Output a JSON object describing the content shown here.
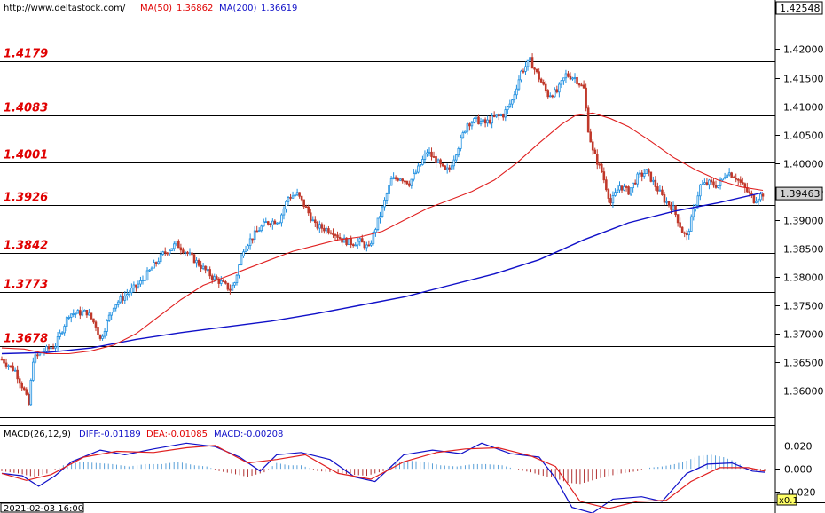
{
  "header": {
    "url": "http://www.deltastock.com/",
    "ma50_label": "MA(50)",
    "ma50_value": "1.36862",
    "ma200_label": "MA(200)",
    "ma200_value": "1.36619"
  },
  "colors": {
    "up": "#1e8fe0",
    "down": "#c0392b",
    "ma50": "#e02020",
    "ma200": "#1010c8",
    "level_text": "#e00000",
    "diff": "#1010c8",
    "dea": "#e02020",
    "hist_pos": "#5aa0d8",
    "hist_neg": "#b03030"
  },
  "macd_header": {
    "title": "MACD(26,12,9)",
    "diff": "DIFF:-0.01189",
    "dea": "DEA:-0.01085",
    "macd": "MACD:-0.00208"
  },
  "footer": {
    "date": "2021-02-03 16:00",
    "zoom": "x0.1"
  },
  "chart_data": [
    {
      "type": "candlestick",
      "title": "",
      "ylim": [
        1.3555,
        1.426
      ],
      "y_ticks": [
        "1.42000",
        "1.41500",
        "1.41000",
        "1.40500",
        "1.40000",
        "1.39500",
        "1.39000",
        "1.38500",
        "1.38000",
        "1.37500",
        "1.37000",
        "1.36500",
        "1.36000"
      ],
      "y_tick_values": [
        1.42,
        1.415,
        1.41,
        1.405,
        1.4,
        1.395,
        1.39,
        1.385,
        1.38,
        1.375,
        1.37,
        1.365,
        1.36
      ],
      "top_value": "1.42548",
      "current_price": "1.39463",
      "current_price_value": 1.39463,
      "levels": [
        {
          "label": "1.4179",
          "value": 1.4179
        },
        {
          "label": "1.4083",
          "value": 1.4083
        },
        {
          "label": "1.4001",
          "value": 1.4001
        },
        {
          "label": "1.3926",
          "value": 1.3926
        },
        {
          "label": "1.3842",
          "value": 1.3842
        },
        {
          "label": "1.3773",
          "value": 1.3773
        },
        {
          "label": "1.3678",
          "value": 1.3678
        }
      ],
      "close_path": [
        [
          0,
          1.3655
        ],
        [
          6,
          1.3635
        ],
        [
          10,
          1.36
        ],
        [
          12,
          1.3575
        ],
        [
          14,
          1.3655
        ],
        [
          18,
          1.3668
        ],
        [
          24,
          1.368
        ],
        [
          30,
          1.3735
        ],
        [
          38,
          1.3738
        ],
        [
          42,
          1.3715
        ],
        [
          44,
          1.369
        ],
        [
          50,
          1.375
        ],
        [
          56,
          1.377
        ],
        [
          62,
          1.379
        ],
        [
          66,
          1.381
        ],
        [
          72,
          1.384
        ],
        [
          78,
          1.3858
        ],
        [
          82,
          1.3845
        ],
        [
          86,
          1.383
        ],
        [
          90,
          1.3815
        ],
        [
          94,
          1.38
        ],
        [
          98,
          1.379
        ],
        [
          102,
          1.3778
        ],
        [
          104,
          1.379
        ],
        [
          108,
          1.385
        ],
        [
          114,
          1.388
        ],
        [
          118,
          1.3895
        ],
        [
          124,
          1.39
        ],
        [
          128,
          1.394
        ],
        [
          132,
          1.3945
        ],
        [
          136,
          1.392
        ],
        [
          140,
          1.389
        ],
        [
          144,
          1.3885
        ],
        [
          148,
          1.388
        ],
        [
          152,
          1.3865
        ],
        [
          156,
          1.386
        ],
        [
          160,
          1.3862
        ],
        [
          164,
          1.385
        ],
        [
          166,
          1.3875
        ],
        [
          170,
          1.392
        ],
        [
          174,
          1.397
        ],
        [
          178,
          1.3975
        ],
        [
          182,
          1.3965
        ],
        [
          186,
          1.399
        ],
        [
          190,
          1.402
        ],
        [
          194,
          1.4005
        ],
        [
          198,
          1.3985
        ],
        [
          200,
          1.399
        ],
        [
          204,
          1.403
        ],
        [
          208,
          1.407
        ],
        [
          212,
          1.4075
        ],
        [
          216,
          1.407
        ],
        [
          220,
          1.408
        ],
        [
          224,
          1.4085
        ],
        [
          228,
          1.411
        ],
        [
          232,
          1.416
        ],
        [
          236,
          1.418
        ],
        [
          240,
          1.415
        ],
        [
          244,
          1.412
        ],
        [
          248,
          1.4125
        ],
        [
          252,
          1.4155
        ],
        [
          256,
          1.415
        ],
        [
          260,
          1.413
        ],
        [
          262,
          1.406
        ],
        [
          264,
          1.402
        ],
        [
          268,
          1.3985
        ],
        [
          272,
          1.393
        ],
        [
          276,
          1.396
        ],
        [
          280,
          1.395
        ],
        [
          284,
          1.3975
        ],
        [
          288,
          1.3985
        ],
        [
          292,
          1.396
        ],
        [
          296,
          1.3935
        ],
        [
          300,
          1.392
        ],
        [
          304,
          1.388
        ],
        [
          306,
          1.387
        ],
        [
          308,
          1.39
        ],
        [
          312,
          1.396
        ],
        [
          316,
          1.3965
        ],
        [
          320,
          1.396
        ],
        [
          324,
          1.3985
        ],
        [
          328,
          1.3975
        ],
        [
          332,
          1.3955
        ],
        [
          336,
          1.3935
        ],
        [
          340,
          1.3946
        ]
      ],
      "ma50": [
        [
          0,
          1.3675
        ],
        [
          10,
          1.3673
        ],
        [
          20,
          1.3665
        ],
        [
          30,
          1.3665
        ],
        [
          40,
          1.367
        ],
        [
          50,
          1.368
        ],
        [
          60,
          1.37
        ],
        [
          70,
          1.373
        ],
        [
          80,
          1.376
        ],
        [
          90,
          1.3785
        ],
        [
          100,
          1.38
        ],
        [
          110,
          1.3815
        ],
        [
          120,
          1.383
        ],
        [
          130,
          1.3845
        ],
        [
          140,
          1.3855
        ],
        [
          150,
          1.3865
        ],
        [
          160,
          1.387
        ],
        [
          170,
          1.388
        ],
        [
          180,
          1.39
        ],
        [
          190,
          1.392
        ],
        [
          200,
          1.3935
        ],
        [
          210,
          1.395
        ],
        [
          220,
          1.397
        ],
        [
          230,
          1.4
        ],
        [
          240,
          1.4035
        ],
        [
          250,
          1.4068
        ],
        [
          256,
          1.4083
        ],
        [
          264,
          1.4088
        ],
        [
          272,
          1.4078
        ],
        [
          280,
          1.4064
        ],
        [
          290,
          1.4038
        ],
        [
          300,
          1.401
        ],
        [
          310,
          1.3988
        ],
        [
          320,
          1.397
        ],
        [
          330,
          1.3958
        ],
        [
          340,
          1.3952
        ]
      ],
      "ma200": [
        [
          0,
          1.3665
        ],
        [
          20,
          1.3667
        ],
        [
          40,
          1.3675
        ],
        [
          60,
          1.369
        ],
        [
          80,
          1.3702
        ],
        [
          100,
          1.3712
        ],
        [
          120,
          1.3722
        ],
        [
          140,
          1.3735
        ],
        [
          160,
          1.375
        ],
        [
          180,
          1.3765
        ],
        [
          200,
          1.3785
        ],
        [
          220,
          1.3805
        ],
        [
          240,
          1.383
        ],
        [
          260,
          1.3865
        ],
        [
          280,
          1.3895
        ],
        [
          300,
          1.3915
        ],
        [
          320,
          1.393
        ],
        [
          340,
          1.3948
        ]
      ]
    },
    {
      "type": "macd",
      "title": "",
      "ylim": [
        -0.028,
        0.026
      ],
      "y_ticks": [
        "0.020",
        "0.000",
        "-0.020"
      ],
      "y_tick_values": [
        0.02,
        0.0,
        -0.02
      ],
      "diff": [
        [
          0,
          -0.004
        ],
        [
          10,
          -0.006
        ],
        [
          18,
          -0.015
        ],
        [
          26,
          -0.006
        ],
        [
          34,
          0.006
        ],
        [
          48,
          0.016
        ],
        [
          60,
          0.012
        ],
        [
          74,
          0.017
        ],
        [
          90,
          0.022
        ],
        [
          104,
          0.019
        ],
        [
          116,
          0.01
        ],
        [
          126,
          -0.002
        ],
        [
          134,
          0.012
        ],
        [
          146,
          0.014
        ],
        [
          160,
          0.008
        ],
        [
          172,
          -0.007
        ],
        [
          182,
          -0.011
        ],
        [
          196,
          0.012
        ],
        [
          210,
          0.016
        ],
        [
          224,
          0.013
        ],
        [
          234,
          0.022
        ],
        [
          248,
          0.013
        ],
        [
          262,
          0.01
        ],
        [
          270,
          -0.008
        ],
        [
          278,
          -0.033
        ],
        [
          288,
          -0.038
        ],
        [
          298,
          -0.026
        ],
        [
          312,
          -0.024
        ],
        [
          322,
          -0.028
        ],
        [
          334,
          -0.004
        ],
        [
          344,
          0.004
        ],
        [
          356,
          0.005
        ],
        [
          366,
          -0.002
        ],
        [
          372,
          -0.003
        ]
      ],
      "dea": [
        [
          0,
          -0.004
        ],
        [
          12,
          -0.01
        ],
        [
          24,
          -0.005
        ],
        [
          40,
          0.01
        ],
        [
          56,
          0.015
        ],
        [
          74,
          0.014
        ],
        [
          90,
          0.018
        ],
        [
          104,
          0.02
        ],
        [
          120,
          0.005
        ],
        [
          134,
          0.008
        ],
        [
          148,
          0.012
        ],
        [
          164,
          -0.004
        ],
        [
          180,
          -0.009
        ],
        [
          196,
          0.006
        ],
        [
          212,
          0.014
        ],
        [
          226,
          0.017
        ],
        [
          242,
          0.018
        ],
        [
          258,
          0.011
        ],
        [
          270,
          0.002
        ],
        [
          282,
          -0.028
        ],
        [
          296,
          -0.034
        ],
        [
          310,
          -0.028
        ],
        [
          324,
          -0.027
        ],
        [
          336,
          -0.011
        ],
        [
          350,
          0.001
        ],
        [
          364,
          0.001
        ],
        [
          372,
          -0.002
        ]
      ],
      "hist": [
        [
          0,
          -0.002
        ],
        [
          8,
          -0.004
        ],
        [
          16,
          -0.007
        ],
        [
          24,
          -0.003
        ],
        [
          30,
          0.003
        ],
        [
          38,
          0.006
        ],
        [
          46,
          0.005
        ],
        [
          54,
          0.004
        ],
        [
          62,
          0.002
        ],
        [
          70,
          0.004
        ],
        [
          78,
          0.004
        ],
        [
          86,
          0.006
        ],
        [
          94,
          0.003
        ],
        [
          100,
          0.002
        ],
        [
          106,
          -0.002
        ],
        [
          112,
          -0.004
        ],
        [
          120,
          -0.007
        ],
        [
          128,
          -0.003
        ],
        [
          134,
          0.005
        ],
        [
          140,
          0.003
        ],
        [
          146,
          0.003
        ],
        [
          154,
          -0.002
        ],
        [
          162,
          -0.003
        ],
        [
          170,
          -0.005
        ],
        [
          178,
          -0.006
        ],
        [
          186,
          -0.002
        ],
        [
          192,
          0.005
        ],
        [
          198,
          0.007
        ],
        [
          206,
          0.006
        ],
        [
          214,
          0.003
        ],
        [
          222,
          0.002
        ],
        [
          230,
          0.004
        ],
        [
          236,
          0.004
        ],
        [
          244,
          0.003
        ],
        [
          252,
          -0.001
        ],
        [
          258,
          -0.003
        ],
        [
          264,
          -0.006
        ],
        [
          270,
          -0.008
        ],
        [
          276,
          -0.012
        ],
        [
          282,
          -0.013
        ],
        [
          288,
          -0.01
        ],
        [
          294,
          -0.007
        ],
        [
          302,
          -0.004
        ],
        [
          310,
          -0.002
        ],
        [
          316,
          0.001
        ],
        [
          322,
          0.002
        ],
        [
          328,
          0.004
        ],
        [
          334,
          0.007
        ],
        [
          340,
          0.011
        ],
        [
          346,
          0.012
        ],
        [
          352,
          0.01
        ],
        [
          358,
          0.006
        ],
        [
          364,
          -0.001
        ],
        [
          370,
          -0.002
        ]
      ]
    }
  ]
}
